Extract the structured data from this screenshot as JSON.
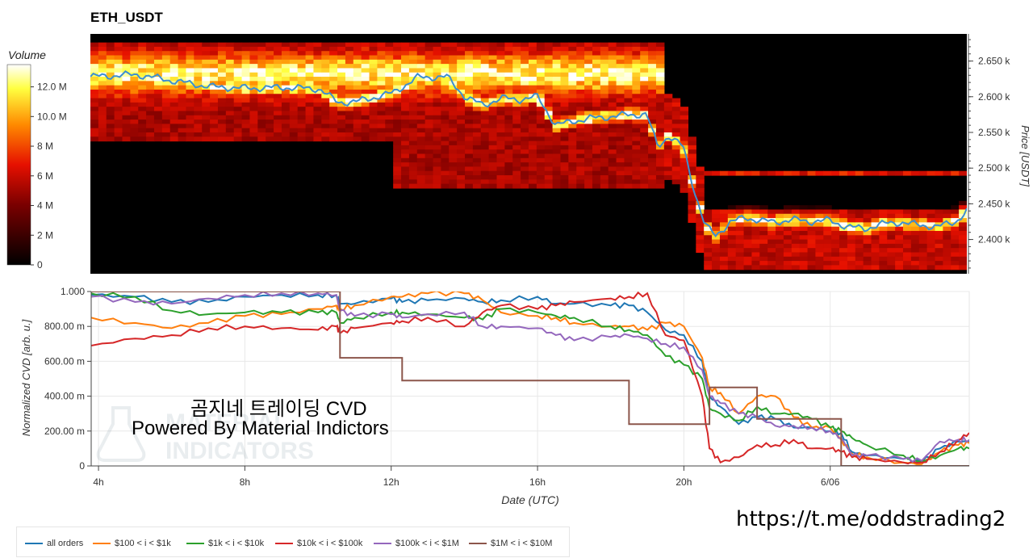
{
  "title": "ETH_USDT",
  "heatmap": {
    "colorbar_title": "Volume",
    "colorbar_ticks": [
      "12.0 M",
      "10.0 M",
      "8 M",
      "6 M",
      "4 M",
      "2 M",
      "0"
    ],
    "colorbar_values": [
      12,
      10,
      8,
      6,
      4,
      2,
      0
    ],
    "colorbar_max": 13.5,
    "y_label": "Price [USDT]",
    "y_ticks": [
      "2.650 k",
      "2.600 k",
      "2.550 k",
      "2.500 k",
      "2.450 k",
      "2.400 k"
    ],
    "y_tick_values": [
      2650,
      2600,
      2550,
      2500,
      2450,
      2400
    ],
    "y_range": [
      2352,
      2688
    ],
    "colors": {
      "low": "#000000",
      "mid": "#cc0000",
      "high_mid": "#ff8800",
      "top": "#ffff66",
      "max": "#ffffff",
      "price_line": "#3d8fd1"
    }
  },
  "watermark": {
    "line1": "곰지네 트레이딩 CVD",
    "line2": "Powered By Material Indictors",
    "logo_text1": "MATERIAL",
    "logo_text2": "INDICATORS"
  },
  "link": "https://t.me/oddstrading2",
  "chart_data": [
    {
      "type": "heatmap",
      "title": "ETH_USDT",
      "ylabel": "Price [USDT]",
      "colorbar_label": "Volume",
      "ylim": [
        2352,
        2688
      ],
      "x_hours": [
        3.7,
        5,
        6,
        7,
        8,
        9,
        10,
        10.5,
        11,
        12,
        12.7,
        13.5,
        14,
        14.5,
        15,
        15.5,
        16,
        16.5,
        17,
        17.5,
        18,
        18.5,
        19,
        19.3,
        19.6,
        20,
        20.3,
        20.6,
        20.9,
        21.3,
        21.7,
        22,
        22.5,
        23,
        23.5,
        24,
        24.5,
        25,
        25.5,
        26,
        26.5,
        27,
        27.5,
        27.8
      ],
      "price_line": [
        2628,
        2631,
        2622,
        2614,
        2612,
        2613,
        2611,
        2592,
        2593,
        2605,
        2627,
        2628,
        2600,
        2588,
        2598,
        2596,
        2600,
        2560,
        2566,
        2570,
        2572,
        2575,
        2575,
        2530,
        2545,
        2530,
        2470,
        2420,
        2405,
        2425,
        2430,
        2428,
        2424,
        2428,
        2425,
        2427,
        2418,
        2415,
        2422,
        2424,
        2420,
        2418,
        2425,
        2440
      ]
    },
    {
      "type": "line",
      "xlabel": "Date (UTC)",
      "ylabel": "Normalized CVD [arb. u.]",
      "x_ticks": [
        "4h",
        "8h",
        "12h",
        "16h",
        "20h",
        "6/06"
      ],
      "x_tick_hours": [
        4,
        8,
        12,
        16,
        20,
        24
      ],
      "y_ticks": [
        "1.000",
        "800.00 m",
        "600.00 m",
        "400.00 m",
        "200.00 m",
        "0"
      ],
      "y_tick_values": [
        1.0,
        0.8,
        0.6,
        0.4,
        0.2,
        0
      ],
      "xlim": [
        3.8,
        27.8
      ],
      "ylim": [
        0,
        1.0
      ],
      "grid": true,
      "legend_position": "bottom",
      "x": [
        3.8,
        5,
        6,
        7,
        8,
        9,
        10,
        10.5,
        10.6,
        11,
        12,
        12.3,
        13,
        14,
        14.5,
        15,
        16,
        16.5,
        17,
        18,
        18.5,
        19,
        19.5,
        20,
        20.5,
        20.7,
        21,
        21.5,
        22,
        22.5,
        23,
        23.5,
        24,
        24.3,
        24.6,
        25,
        26,
        26.5,
        27,
        27.5,
        27.8
      ],
      "series": [
        {
          "name": "all orders",
          "color": "#1f77b4",
          "values": [
            0.98,
            0.97,
            0.94,
            0.94,
            0.97,
            0.98,
            0.98,
            0.98,
            0.93,
            0.93,
            0.96,
            0.94,
            0.95,
            0.96,
            0.94,
            0.95,
            0.97,
            0.93,
            0.93,
            0.92,
            0.92,
            0.88,
            0.78,
            0.75,
            0.6,
            0.4,
            0.34,
            0.24,
            0.28,
            0.27,
            0.22,
            0.22,
            0.2,
            0.19,
            0.08,
            0.06,
            0.04,
            0.02,
            0.1,
            0.14,
            0.14
          ]
        },
        {
          "name": "$100 < i < $1k",
          "color": "#ff7f0e",
          "values": [
            0.85,
            0.82,
            0.79,
            0.82,
            0.86,
            0.87,
            0.9,
            0.92,
            0.9,
            0.92,
            0.97,
            0.97,
            0.99,
            0.99,
            0.95,
            0.88,
            0.86,
            0.85,
            0.82,
            0.8,
            0.8,
            0.78,
            0.82,
            0.8,
            0.62,
            0.45,
            0.42,
            0.3,
            0.4,
            0.4,
            0.28,
            0.22,
            0.22,
            0.15,
            0.07,
            0.05,
            0.02,
            0.01,
            0.08,
            0.12,
            0.13
          ]
        },
        {
          "name": "$1k < i < $10k",
          "color": "#2ca02c",
          "values": [
            0.99,
            0.97,
            0.89,
            0.87,
            0.88,
            0.88,
            0.88,
            0.88,
            0.82,
            0.85,
            0.88,
            0.88,
            0.87,
            0.85,
            0.84,
            0.9,
            0.88,
            0.86,
            0.85,
            0.8,
            0.78,
            0.75,
            0.63,
            0.58,
            0.5,
            0.33,
            0.3,
            0.26,
            0.34,
            0.3,
            0.3,
            0.27,
            0.22,
            0.2,
            0.16,
            0.12,
            0.06,
            0.03,
            0.06,
            0.1,
            0.1
          ]
        },
        {
          "name": "$10k < i < $100k",
          "color": "#d62728",
          "values": [
            0.69,
            0.73,
            0.75,
            0.79,
            0.8,
            0.79,
            0.78,
            0.8,
            0.76,
            0.79,
            0.82,
            0.83,
            0.85,
            0.8,
            0.88,
            0.92,
            0.9,
            0.92,
            0.94,
            0.96,
            0.97,
            0.99,
            0.75,
            0.72,
            0.4,
            0.1,
            0.02,
            0.05,
            0.12,
            0.12,
            0.15,
            0.1,
            0.1,
            0.08,
            0.05,
            0.04,
            0.02,
            0.02,
            0.08,
            0.15,
            0.19
          ]
        },
        {
          "name": "$100k < i < $1M",
          "color": "#9467bd",
          "values": [
            0.97,
            0.94,
            0.93,
            0.96,
            0.98,
            0.99,
            0.99,
            0.98,
            0.89,
            0.86,
            0.87,
            0.85,
            0.87,
            0.88,
            0.8,
            0.8,
            0.79,
            0.75,
            0.72,
            0.74,
            0.75,
            0.73,
            0.7,
            0.68,
            0.55,
            0.4,
            0.36,
            0.3,
            0.28,
            0.23,
            0.23,
            0.22,
            0.2,
            0.16,
            0.06,
            0.06,
            0.04,
            0.03,
            0.14,
            0.15,
            0.15
          ]
        },
        {
          "name": "$1M < i < $10M",
          "color": "#8c564b",
          "values": [
            1.0,
            1.0,
            1.0,
            1.0,
            1.0,
            1.0,
            1.0,
            1.0,
            0.62,
            0.62,
            0.62,
            0.49,
            0.49,
            0.49,
            0.49,
            0.49,
            0.49,
            0.49,
            0.49,
            0.49,
            0.24,
            0.24,
            0.24,
            0.24,
            0.24,
            0.45,
            0.45,
            0.45,
            0.27,
            0.27,
            0.27,
            0.27,
            0.27,
            0.0,
            0.0,
            0.0,
            0.0,
            0.0,
            0.0,
            0.0,
            0.0
          ]
        }
      ]
    }
  ]
}
